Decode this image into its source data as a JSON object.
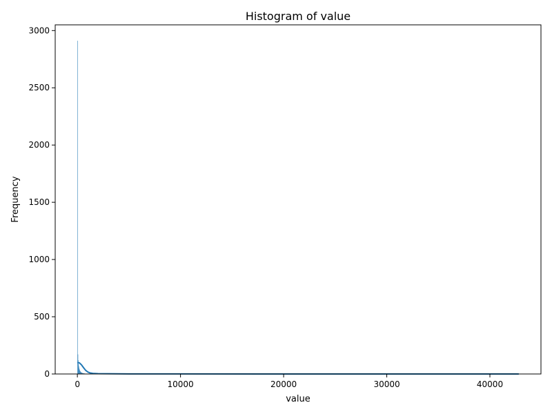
{
  "chart_data": {
    "type": "bar",
    "title": "Histogram of value",
    "xlabel": "value",
    "ylabel": "Frequency",
    "xlim": [
      -2150,
      44950
    ],
    "ylim": [
      0,
      3050
    ],
    "xticks": [
      0,
      10000,
      20000,
      30000,
      40000
    ],
    "yticks": [
      0,
      500,
      1000,
      1500,
      2000,
      2500,
      3000
    ],
    "grid": false,
    "bins": [
      {
        "x0": 0,
        "x1": 30,
        "count": 2910
      },
      {
        "x0": 30,
        "x1": 60,
        "count": 170
      },
      {
        "x0": 60,
        "x1": 90,
        "count": 120
      },
      {
        "x0": 90,
        "x1": 120,
        "count": 85
      },
      {
        "x0": 120,
        "x1": 150,
        "count": 65
      },
      {
        "x0": 150,
        "x1": 180,
        "count": 50
      },
      {
        "x0": 180,
        "x1": 210,
        "count": 40
      },
      {
        "x0": 210,
        "x1": 240,
        "count": 32
      },
      {
        "x0": 240,
        "x1": 270,
        "count": 26
      },
      {
        "x0": 270,
        "x1": 300,
        "count": 22
      },
      {
        "x0": 300,
        "x1": 330,
        "count": 18
      },
      {
        "x0": 330,
        "x1": 360,
        "count": 15
      },
      {
        "x0": 360,
        "x1": 390,
        "count": 12
      },
      {
        "x0": 390,
        "x1": 420,
        "count": 10
      },
      {
        "x0": 420,
        "x1": 450,
        "count": 9
      },
      {
        "x0": 450,
        "x1": 480,
        "count": 8
      },
      {
        "x0": 480,
        "x1": 510,
        "count": 7
      },
      {
        "x0": 510,
        "x1": 540,
        "count": 6
      },
      {
        "x0": 540,
        "x1": 570,
        "count": 5
      },
      {
        "x0": 570,
        "x1": 600,
        "count": 5
      },
      {
        "x0": 600,
        "x1": 630,
        "count": 4
      },
      {
        "x0": 630,
        "x1": 660,
        "count": 4
      },
      {
        "x0": 660,
        "x1": 690,
        "count": 3
      },
      {
        "x0": 690,
        "x1": 720,
        "count": 3
      },
      {
        "x0": 720,
        "x1": 750,
        "count": 2
      },
      {
        "x0": 750,
        "x1": 780,
        "count": 2
      },
      {
        "x0": 780,
        "x1": 810,
        "count": 2
      },
      {
        "x0": 810,
        "x1": 840,
        "count": 1
      }
    ],
    "kde": {
      "x": [
        0,
        200,
        400,
        600,
        800,
        1000,
        1200,
        1500,
        2000,
        3000,
        5000,
        10000,
        20000,
        30000,
        40000,
        42800
      ],
      "y": [
        100,
        97,
        80,
        55,
        32,
        18,
        10,
        5,
        3,
        2,
        1,
        0.6,
        0.3,
        0.2,
        0.1,
        0.1
      ]
    },
    "colors": {
      "bar_fill": "#1f77b4",
      "kde_line": "#1f77b4"
    }
  }
}
